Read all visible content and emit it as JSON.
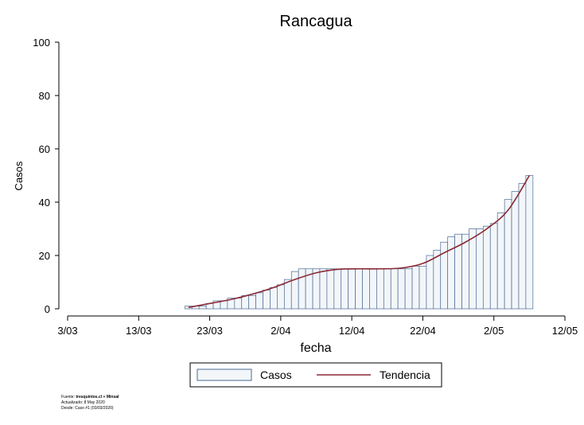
{
  "chart_data": {
    "type": "bar",
    "title": "Rancagua",
    "xlabel": "fecha",
    "ylabel": "Casos",
    "ylim": [
      0,
      100
    ],
    "yticks": [
      "0",
      "20",
      "40",
      "60",
      "80",
      "100"
    ],
    "xlim": [
      "2020-03-03",
      "2020-05-12"
    ],
    "xticks": [
      {
        "date": "2020-03-03",
        "label": "3/03"
      },
      {
        "date": "2020-03-13",
        "label": "13/03"
      },
      {
        "date": "2020-03-23",
        "label": "23/03"
      },
      {
        "date": "2020-04-02",
        "label": "2/04"
      },
      {
        "date": "2020-04-12",
        "label": "12/04"
      },
      {
        "date": "2020-04-22",
        "label": "22/04"
      },
      {
        "date": "2020-05-02",
        "label": "2/05"
      },
      {
        "date": "2020-05-12",
        "label": "12/05"
      }
    ],
    "grid": false,
    "legend_position": "bottom",
    "series": [
      {
        "name": "Casos",
        "kind": "bar",
        "color": "#f3f6f9",
        "edge_color": "#4a6a94",
        "x": [
          "2020-03-20",
          "2020-03-21",
          "2020-03-22",
          "2020-03-23",
          "2020-03-24",
          "2020-03-25",
          "2020-03-26",
          "2020-03-27",
          "2020-03-28",
          "2020-03-29",
          "2020-03-30",
          "2020-03-31",
          "2020-04-01",
          "2020-04-02",
          "2020-04-03",
          "2020-04-04",
          "2020-04-05",
          "2020-04-06",
          "2020-04-07",
          "2020-04-08",
          "2020-04-09",
          "2020-04-10",
          "2020-04-11",
          "2020-04-12",
          "2020-04-13",
          "2020-04-14",
          "2020-04-15",
          "2020-04-16",
          "2020-04-17",
          "2020-04-18",
          "2020-04-19",
          "2020-04-20",
          "2020-04-21",
          "2020-04-22",
          "2020-04-23",
          "2020-04-24",
          "2020-04-25",
          "2020-04-26",
          "2020-04-27",
          "2020-04-28",
          "2020-04-29",
          "2020-04-30",
          "2020-05-01",
          "2020-05-02",
          "2020-05-03",
          "2020-05-04",
          "2020-05-05",
          "2020-05-06",
          "2020-05-07"
        ],
        "values": [
          1,
          1,
          1,
          2,
          3,
          3,
          4,
          4,
          5,
          5,
          6,
          7,
          8,
          9,
          11,
          14,
          15,
          15,
          15,
          15,
          15,
          15,
          15,
          15,
          15,
          15,
          15,
          15,
          15,
          15,
          15,
          15,
          16,
          16,
          20,
          22,
          25,
          27,
          28,
          28,
          30,
          30,
          31,
          32,
          36,
          41,
          44,
          47,
          50
        ]
      },
      {
        "name": "Tendencia",
        "kind": "line",
        "color": "#8b2a35",
        "x": [
          "2020-03-20",
          "2020-03-23",
          "2020-03-26",
          "2020-03-29",
          "2020-04-01",
          "2020-04-04",
          "2020-04-07",
          "2020-04-10",
          "2020-04-13",
          "2020-04-16",
          "2020-04-19",
          "2020-04-22",
          "2020-04-25",
          "2020-04-28",
          "2020-05-01",
          "2020-05-04",
          "2020-05-07"
        ],
        "values": [
          0.5,
          2,
          3.5,
          5.5,
          8,
          11,
          13.5,
          14.8,
          15,
          15,
          15.3,
          17,
          21,
          25,
          30,
          37,
          50
        ]
      }
    ]
  },
  "footer": {
    "source_label": "Fuente: ",
    "source_value": "tresquintos.cl + Minsal",
    "updated": "Actualizado: 8 May 2020",
    "since": "Desde: Caso #1  (03/03/2020)"
  }
}
